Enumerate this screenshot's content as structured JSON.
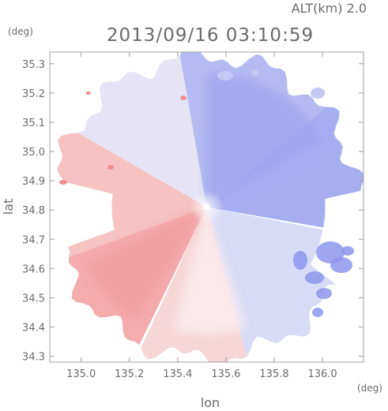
{
  "header": {
    "altitude": "ALT(km)  2.0",
    "timestamp": "2013/09/16 03:10:59"
  },
  "chart_data": {
    "type": "heatmap",
    "title": "2013/09/16 03:10:59",
    "subtitle": "ALT(km)  2.0",
    "xlabel": "lon",
    "ylabel": "lat",
    "x_unit": "(deg)",
    "y_unit": "(deg)",
    "xlim": [
      134.87,
      136.17
    ],
    "ylim": [
      34.28,
      35.34
    ],
    "x_ticks": [
      {
        "value": 135.0,
        "label": "135.0"
      },
      {
        "value": 135.2,
        "label": "135.2"
      },
      {
        "value": 135.4,
        "label": "135.4"
      },
      {
        "value": 135.6,
        "label": "135.6"
      },
      {
        "value": 135.8,
        "label": "135.8"
      },
      {
        "value": 136.0,
        "label": "136.0"
      }
    ],
    "y_ticks": [
      {
        "value": 34.3,
        "label": "34.3"
      },
      {
        "value": 34.4,
        "label": "34.4"
      },
      {
        "value": 34.5,
        "label": "34.5"
      },
      {
        "value": 34.6,
        "label": "34.6"
      },
      {
        "value": 34.7,
        "label": "34.7"
      },
      {
        "value": 34.8,
        "label": "34.8"
      },
      {
        "value": 34.9,
        "label": "34.9"
      },
      {
        "value": 35.0,
        "label": "35.0"
      },
      {
        "value": 35.1,
        "label": "35.1"
      },
      {
        "value": 35.2,
        "label": "35.2"
      },
      {
        "value": 35.3,
        "label": "35.3"
      }
    ],
    "radar_center": {
      "lon": 135.52,
      "lat": 34.81
    },
    "colors": {
      "negative": "#8c96ec",
      "neutral": "#f2f0f6",
      "positive": "#f5a0a2",
      "axis": "#a0a0a0",
      "text": "#6b6b6b"
    },
    "grid": false,
    "legend": "none",
    "regions": [
      {
        "name": "north-east sector",
        "sign": "negative",
        "intensity": 0.75
      },
      {
        "name": "south-east sector",
        "sign": "negative",
        "intensity": 0.45
      },
      {
        "name": "south-west sector",
        "sign": "positive",
        "intensity": 0.55
      },
      {
        "name": "north-west sector",
        "sign": "positive",
        "intensity": 0.6
      },
      {
        "name": "eastern scattered echoes",
        "sign": "negative",
        "intensity": 0.85
      }
    ]
  }
}
